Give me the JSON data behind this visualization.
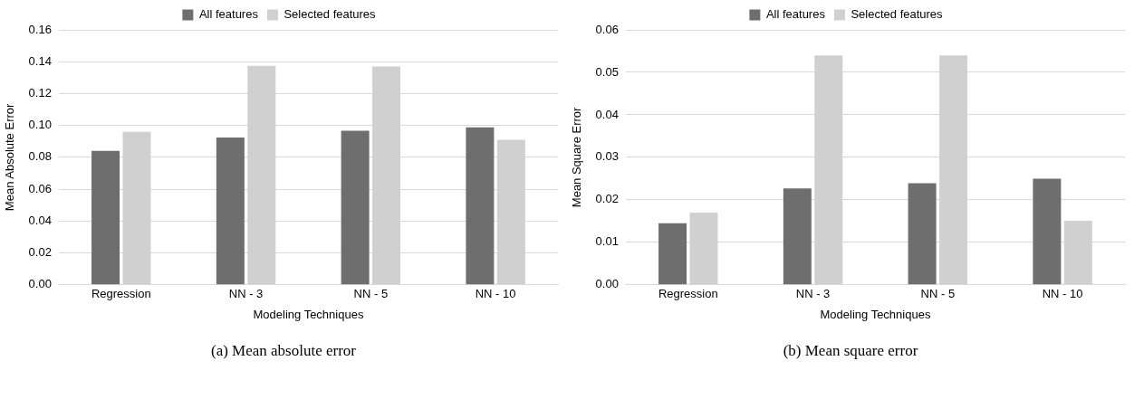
{
  "chart_data": [
    {
      "type": "bar",
      "xlabel": "Modeling Techniques",
      "ylabel": "Mean Absolute Error",
      "categories": [
        "Regression",
        "NN - 3",
        "NN - 5",
        "NN - 10"
      ],
      "series": [
        {
          "name": "All features",
          "color": "#6e6e6e",
          "values": [
            0.084,
            0.0924,
            0.0967,
            0.0988
          ]
        },
        {
          "name": "Selected features",
          "color": "#d0d0d0",
          "values": [
            0.096,
            0.1375,
            0.137,
            0.091
          ]
        }
      ],
      "ylim": [
        0,
        0.16
      ],
      "yticks": [
        {
          "value": 0,
          "label": "0.00"
        },
        {
          "value": 0.02,
          "label": "0.02"
        },
        {
          "value": 0.04,
          "label": "0.04"
        },
        {
          "value": 0.06,
          "label": "0.06"
        },
        {
          "value": 0.08,
          "label": "0.08"
        },
        {
          "value": 0.1,
          "label": "0.10"
        },
        {
          "value": 0.12,
          "label": "0.12"
        },
        {
          "value": 0.14,
          "label": "0.14"
        },
        {
          "value": 0.16,
          "label": "0.16"
        }
      ],
      "grid": "y",
      "legend": "top",
      "annotations": [
        "(a) Mean absolute error"
      ]
    },
    {
      "type": "bar",
      "xlabel": "Modeling Techniques",
      "ylabel": "Mean Square Error",
      "categories": [
        "Regression",
        "NN - 3",
        "NN - 5",
        "NN - 10"
      ],
      "series": [
        {
          "name": "All features",
          "color": "#6e6e6e",
          "values": [
            0.0145,
            0.0227,
            0.0239,
            0.025
          ]
        },
        {
          "name": "Selected features",
          "color": "#d0d0d0",
          "values": [
            0.017,
            0.054,
            0.054,
            0.0151
          ]
        }
      ],
      "ylim": [
        0,
        0.06
      ],
      "yticks": [
        {
          "value": 0,
          "label": "0.00"
        },
        {
          "value": 0.01,
          "label": "0.01"
        },
        {
          "value": 0.02,
          "label": "0.02"
        },
        {
          "value": 0.03,
          "label": "0.03"
        },
        {
          "value": 0.04,
          "label": "0.04"
        },
        {
          "value": 0.05,
          "label": "0.05"
        },
        {
          "value": 0.06,
          "label": "0.06"
        }
      ],
      "grid": "y",
      "legend": "top",
      "annotations": [
        "(b) Mean square error"
      ]
    }
  ]
}
